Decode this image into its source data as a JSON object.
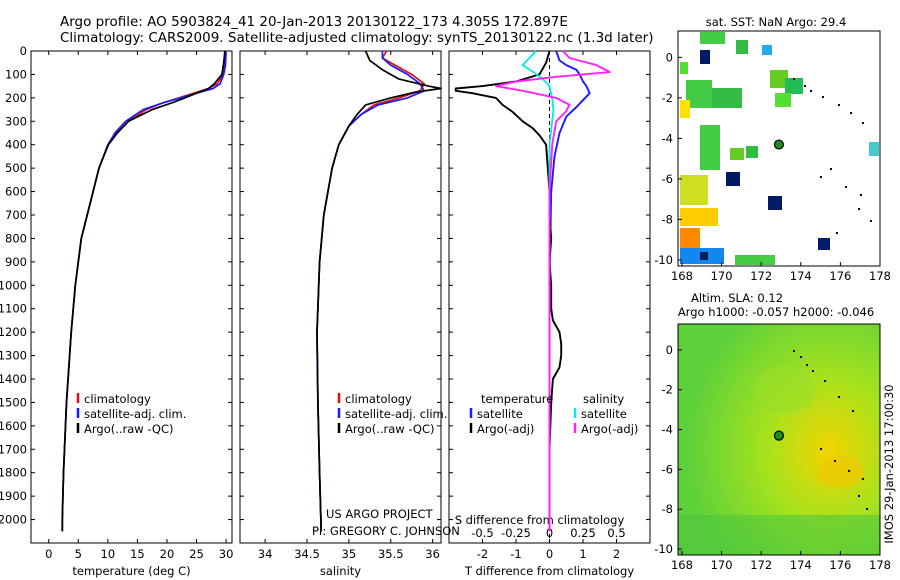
{
  "header": {
    "line1": "Argo profile: AO 5903824_41 20-Jan-2013 20130122_173 4.305S 172.897E",
    "line2": "Climatology: CARS2009. Satellite-adjusted climatology: synTS_20130122.nc (1.3d later)"
  },
  "credits": {
    "project": "US ARGO PROJECT",
    "pi": "PI: GREGORY C. JOHNSON",
    "imos_stamp": "IMOS 29-Jan-2013 17:00:30"
  },
  "colors": {
    "climatology": "#e01010",
    "satellite": "#1a1aff",
    "argo": "#000000",
    "satellite_salinity": "#11e6e6",
    "argo_salinity_adj": "#ff22ff"
  },
  "chart_data": [
    {
      "type": "line",
      "ylabel": "",
      "xlabel": "temperature (deg C)",
      "xlim": [
        -3,
        31
      ],
      "ylim": [
        2100,
        0
      ],
      "x_ticks": [
        0,
        5,
        10,
        15,
        20,
        25,
        30
      ],
      "y_ticks": [
        0,
        100,
        200,
        300,
        400,
        500,
        600,
        700,
        800,
        900,
        1000,
        1100,
        1200,
        1300,
        1400,
        1500,
        1600,
        1700,
        1800,
        1900,
        2000
      ],
      "legend": {
        "placement": "center-left",
        "entries": [
          "climatology",
          "satellite-adj. clim.",
          "Argo(..raw -QC)"
        ]
      },
      "series": [
        {
          "name": "climatology",
          "color": "#e01010",
          "depth": [
            0,
            60,
            100,
            140,
            160,
            180,
            200,
            220,
            250,
            300,
            350,
            400,
            500,
            600,
            700,
            800,
            1000,
            1200,
            1500,
            1800,
            2000,
            2050
          ],
          "values": [
            29.8,
            29.7,
            29.5,
            28.5,
            27.0,
            24.5,
            22.0,
            19.5,
            16.5,
            13.5,
            11.5,
            10.0,
            8.5,
            7.5,
            6.5,
            5.5,
            4.5,
            3.8,
            3.0,
            2.5,
            2.3,
            2.3
          ]
        },
        {
          "name": "satellite-adj. clim.",
          "color": "#1a1aff",
          "depth": [
            0,
            60,
            100,
            140,
            160,
            180,
            200,
            220,
            250,
            300,
            350,
            400,
            500,
            600,
            700,
            800,
            1000,
            1200,
            1500,
            1800,
            2000,
            2050
          ],
          "values": [
            30.0,
            29.9,
            29.6,
            29.0,
            27.8,
            25.0,
            22.3,
            19.5,
            16.0,
            13.0,
            11.2,
            10.0,
            8.5,
            7.5,
            6.5,
            5.5,
            4.5,
            3.8,
            3.0,
            2.5,
            2.3,
            2.3
          ]
        },
        {
          "name": "Argo(..raw -QC)",
          "color": "#000000",
          "depth": [
            0,
            50,
            100,
            140,
            160,
            180,
            200,
            220,
            250,
            300,
            350,
            400,
            500,
            600,
            700,
            800,
            1000,
            1200,
            1500,
            1800,
            2000,
            2050
          ],
          "values": [
            29.8,
            29.6,
            29.3,
            28.0,
            27.0,
            25.0,
            23.0,
            21.0,
            17.5,
            13.5,
            11.6,
            10.1,
            8.5,
            7.5,
            6.5,
            5.5,
            4.5,
            3.8,
            3.0,
            2.5,
            2.3,
            2.3
          ]
        }
      ]
    },
    {
      "type": "line",
      "xlabel": "salinity",
      "xlim": [
        33.7,
        36.1
      ],
      "ylim": [
        2100,
        0
      ],
      "x_ticks": [
        34,
        34.5,
        35,
        35.5,
        36
      ],
      "legend": {
        "placement": "center-right",
        "entries": [
          "climatology",
          "satellite-adj. clim.",
          "Argo(..raw -QC)"
        ]
      },
      "series": [
        {
          "name": "climatology",
          "color": "#e01010",
          "depth": [
            0,
            30,
            60,
            100,
            140,
            170,
            200,
            230,
            270,
            320,
            400,
            500,
            700,
            900,
            1200,
            1500,
            1800,
            2050
          ],
          "values": [
            35.45,
            35.4,
            35.55,
            35.75,
            35.9,
            35.85,
            35.6,
            35.3,
            35.15,
            35.0,
            34.88,
            34.8,
            34.7,
            34.65,
            34.62,
            34.63,
            34.65,
            34.67
          ]
        },
        {
          "name": "satellite-adj. clim.",
          "color": "#1a1aff",
          "depth": [
            0,
            30,
            60,
            100,
            140,
            170,
            200,
            230,
            270,
            320,
            400,
            500,
            700,
            900,
            1200,
            1500,
            1800,
            2050
          ],
          "values": [
            35.4,
            35.4,
            35.5,
            35.7,
            35.85,
            35.9,
            35.7,
            35.35,
            35.15,
            35.0,
            34.88,
            34.8,
            34.7,
            34.65,
            34.62,
            34.63,
            34.65,
            34.67
          ]
        },
        {
          "name": "Argo(..raw -QC)",
          "color": "#000000",
          "depth": [
            0,
            40,
            80,
            120,
            150,
            160,
            175,
            200,
            230,
            270,
            320,
            400,
            500,
            700,
            900,
            1200,
            1500,
            1800,
            2050
          ],
          "values": [
            35.2,
            35.25,
            35.4,
            35.6,
            35.95,
            36.1,
            35.8,
            35.5,
            35.2,
            35.1,
            35.0,
            34.88,
            34.8,
            34.7,
            34.65,
            34.62,
            34.63,
            34.65,
            34.67
          ]
        }
      ]
    },
    {
      "type": "line",
      "xlabel_bottom": "T difference from climatology",
      "xlabel_top": "S difference from climatology",
      "x_ticks_T": [
        -2,
        -1,
        0,
        1,
        2
      ],
      "x_ticks_S": [
        -0.5,
        -0.25,
        0,
        0.25,
        0.5
      ],
      "xlim_T": [
        -3,
        3
      ],
      "ylim": [
        2100,
        0
      ],
      "legend": {
        "placement": "bottom",
        "headers": [
          "temperature",
          "salinity"
        ],
        "entries": [
          "satellite",
          "Argo(-adj)",
          "satellite",
          "Argo(-adj)"
        ]
      },
      "series": [
        {
          "name": "satellite",
          "quantity": "temperature",
          "color": "#1a1aff",
          "depth": [
            0,
            40,
            60,
            80,
            100,
            130,
            150,
            180,
            210,
            240,
            280,
            350,
            450,
            600,
            1000,
            1500,
            2050
          ],
          "values": [
            0.2,
            0.3,
            0.5,
            0.8,
            0.9,
            1.0,
            1.1,
            1.2,
            1.0,
            0.8,
            0.5,
            0.3,
            0.15,
            0.05,
            0.0,
            0.0,
            0.0
          ]
        },
        {
          "name": "Argo(-adj)",
          "quantity": "temperature",
          "color": "#000000",
          "depth": [
            0,
            50,
            100,
            130,
            150,
            160,
            170,
            180,
            200,
            230,
            260,
            300,
            330,
            360,
            400,
            500,
            600,
            700,
            800,
            900,
            1000,
            1100,
            1150,
            1200,
            1250,
            1300,
            1350,
            1400,
            1500,
            1700,
            2050
          ],
          "values": [
            0.0,
            -0.1,
            -0.3,
            -1.0,
            -2.0,
            -2.8,
            -2.8,
            -2.3,
            -1.6,
            -1.4,
            -1.1,
            -0.8,
            -0.5,
            -0.3,
            -0.1,
            -0.05,
            0.0,
            0.0,
            0.05,
            0.0,
            0.05,
            0.05,
            0.1,
            0.3,
            0.35,
            0.35,
            0.3,
            0.1,
            0.05,
            0.0,
            0.0
          ]
        },
        {
          "name": "satellite",
          "quantity": "salinity",
          "color": "#11e6e6",
          "depth": [
            0,
            30,
            60,
            90,
            120,
            150,
            200,
            250,
            300,
            400,
            500,
            700,
            1000,
            1500,
            2050
          ],
          "values": [
            -0.1,
            -0.15,
            -0.2,
            -0.12,
            -0.05,
            0.0,
            0.02,
            0.03,
            0.02,
            0.0,
            0.0,
            0.0,
            0.0,
            0.0,
            0.0
          ]
        },
        {
          "name": "Argo(-adj)",
          "quantity": "salinity",
          "color": "#ff22ff",
          "depth": [
            0,
            30,
            60,
            90,
            110,
            130,
            150,
            170,
            200,
            230,
            260,
            300,
            400,
            600,
            1000,
            2050
          ],
          "values": [
            0.1,
            0.15,
            0.35,
            0.45,
            0.05,
            -0.25,
            -0.4,
            -0.2,
            0.05,
            0.15,
            0.12,
            0.05,
            0.02,
            0.0,
            0.0,
            0.0
          ]
        }
      ]
    },
    {
      "type": "heatmap",
      "title": "sat. SST: NaN Argo: 29.4",
      "x_ticks": [
        168,
        170,
        172,
        174,
        176,
        178
      ],
      "y_ticks": [
        0,
        -2,
        -4,
        -6,
        -8,
        -10
      ],
      "xlim": [
        167.8,
        178
      ],
      "ylim": [
        -10.3,
        1.3
      ],
      "argo_position": [
        172.897,
        -4.305
      ]
    },
    {
      "type": "heatmap",
      "title_line1": "Altim. SLA: 0.12",
      "title_line2": "Argo h1000: -0.057 h2000: -0.046",
      "x_ticks": [
        168,
        170,
        172,
        174,
        176,
        178
      ],
      "y_ticks": [
        0,
        -2,
        -4,
        -6,
        -8,
        -10
      ],
      "xlim": [
        167.8,
        178
      ],
      "ylim": [
        -10.3,
        1.3
      ],
      "argo_position": [
        172.897,
        -4.305
      ]
    }
  ]
}
